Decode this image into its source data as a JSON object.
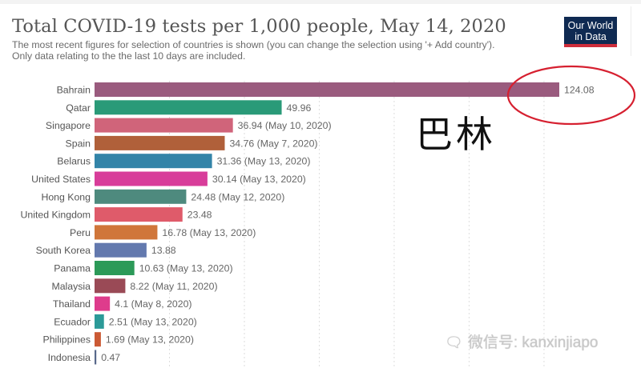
{
  "header": {
    "title": "Total COVID-19 tests per 1,000 people, May 14, 2020",
    "subtitle_line1": "The most recent figures for selection of countries is shown (you can change the selection using '+ Add country').",
    "subtitle_line2": "Only data relating to the the last 10 days are included.",
    "logo_line1": "Our World",
    "logo_line2": "in Data"
  },
  "annotation": {
    "label_cn": "巴林",
    "highlight_color": "#d62030"
  },
  "watermark": {
    "icon": "wechat-icon",
    "text": "微信号: kanxinjiapo"
  },
  "colors": {
    "logo_bg": "#0f2a52",
    "logo_accent": "#ce2d3b"
  },
  "chart_data": {
    "type": "bar",
    "orientation": "horizontal",
    "title": "Total COVID-19 tests per 1,000 people, May 14, 2020",
    "xlabel": "",
    "ylabel": "",
    "xlim": [
      0,
      124.08
    ],
    "grid": "vertical dotted",
    "gridline_step": 20,
    "categories": [
      "Bahrain",
      "Qatar",
      "Singapore",
      "Spain",
      "Belarus",
      "United States",
      "Hong Kong",
      "United Kingdom",
      "Peru",
      "South Korea",
      "Panama",
      "Malaysia",
      "Thailand",
      "Ecuador",
      "Philippines",
      "Indonesia"
    ],
    "values": [
      124.08,
      49.96,
      36.94,
      34.76,
      31.36,
      30.14,
      24.48,
      23.48,
      16.78,
      13.88,
      10.63,
      8.22,
      4.1,
      2.51,
      1.69,
      0.47
    ],
    "value_labels": [
      "124.08",
      "49.96",
      "36.94 (May 10, 2020)",
      "34.76 (May 7, 2020)",
      "31.36 (May 13, 2020)",
      "30.14 (May 13, 2020)",
      "24.48 (May 12, 2020)",
      "23.48",
      "16.78 (May 13, 2020)",
      "13.88",
      "10.63 (May 13, 2020)",
      "8.22 (May 11, 2020)",
      "4.1 (May 8, 2020)",
      "2.51 (May 13, 2020)",
      "1.69 (May 13, 2020)",
      "0.47"
    ],
    "bar_colors": [
      "#9a5b7e",
      "#2a9a78",
      "#d0647a",
      "#b0603a",
      "#3384a8",
      "#d83d9a",
      "#4e8a7e",
      "#df5b6a",
      "#d0763a",
      "#6379ae",
      "#2c9a58",
      "#9a4a56",
      "#de3c8c",
      "#2c9a98",
      "#cb5a34",
      "#58688a"
    ],
    "highlighted": "Bahrain"
  }
}
